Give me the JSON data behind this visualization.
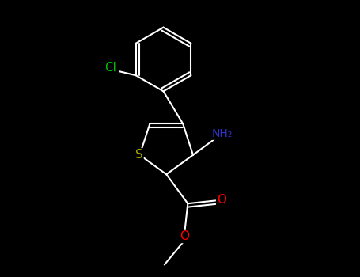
{
  "background_color": "#000000",
  "atom_colors": {
    "C": "#ffffff",
    "N": "#3333cc",
    "O": "#ff0000",
    "S": "#aaaa00",
    "Cl": "#00bb00",
    "H": "#ffffff"
  },
  "bond_color": "#ffffff",
  "bond_width": 1.5,
  "fig_width": 4.55,
  "fig_height": 3.5,
  "dpi": 100,
  "xlim": [
    0,
    9.1
  ],
  "ylim": [
    0,
    7.0
  ]
}
